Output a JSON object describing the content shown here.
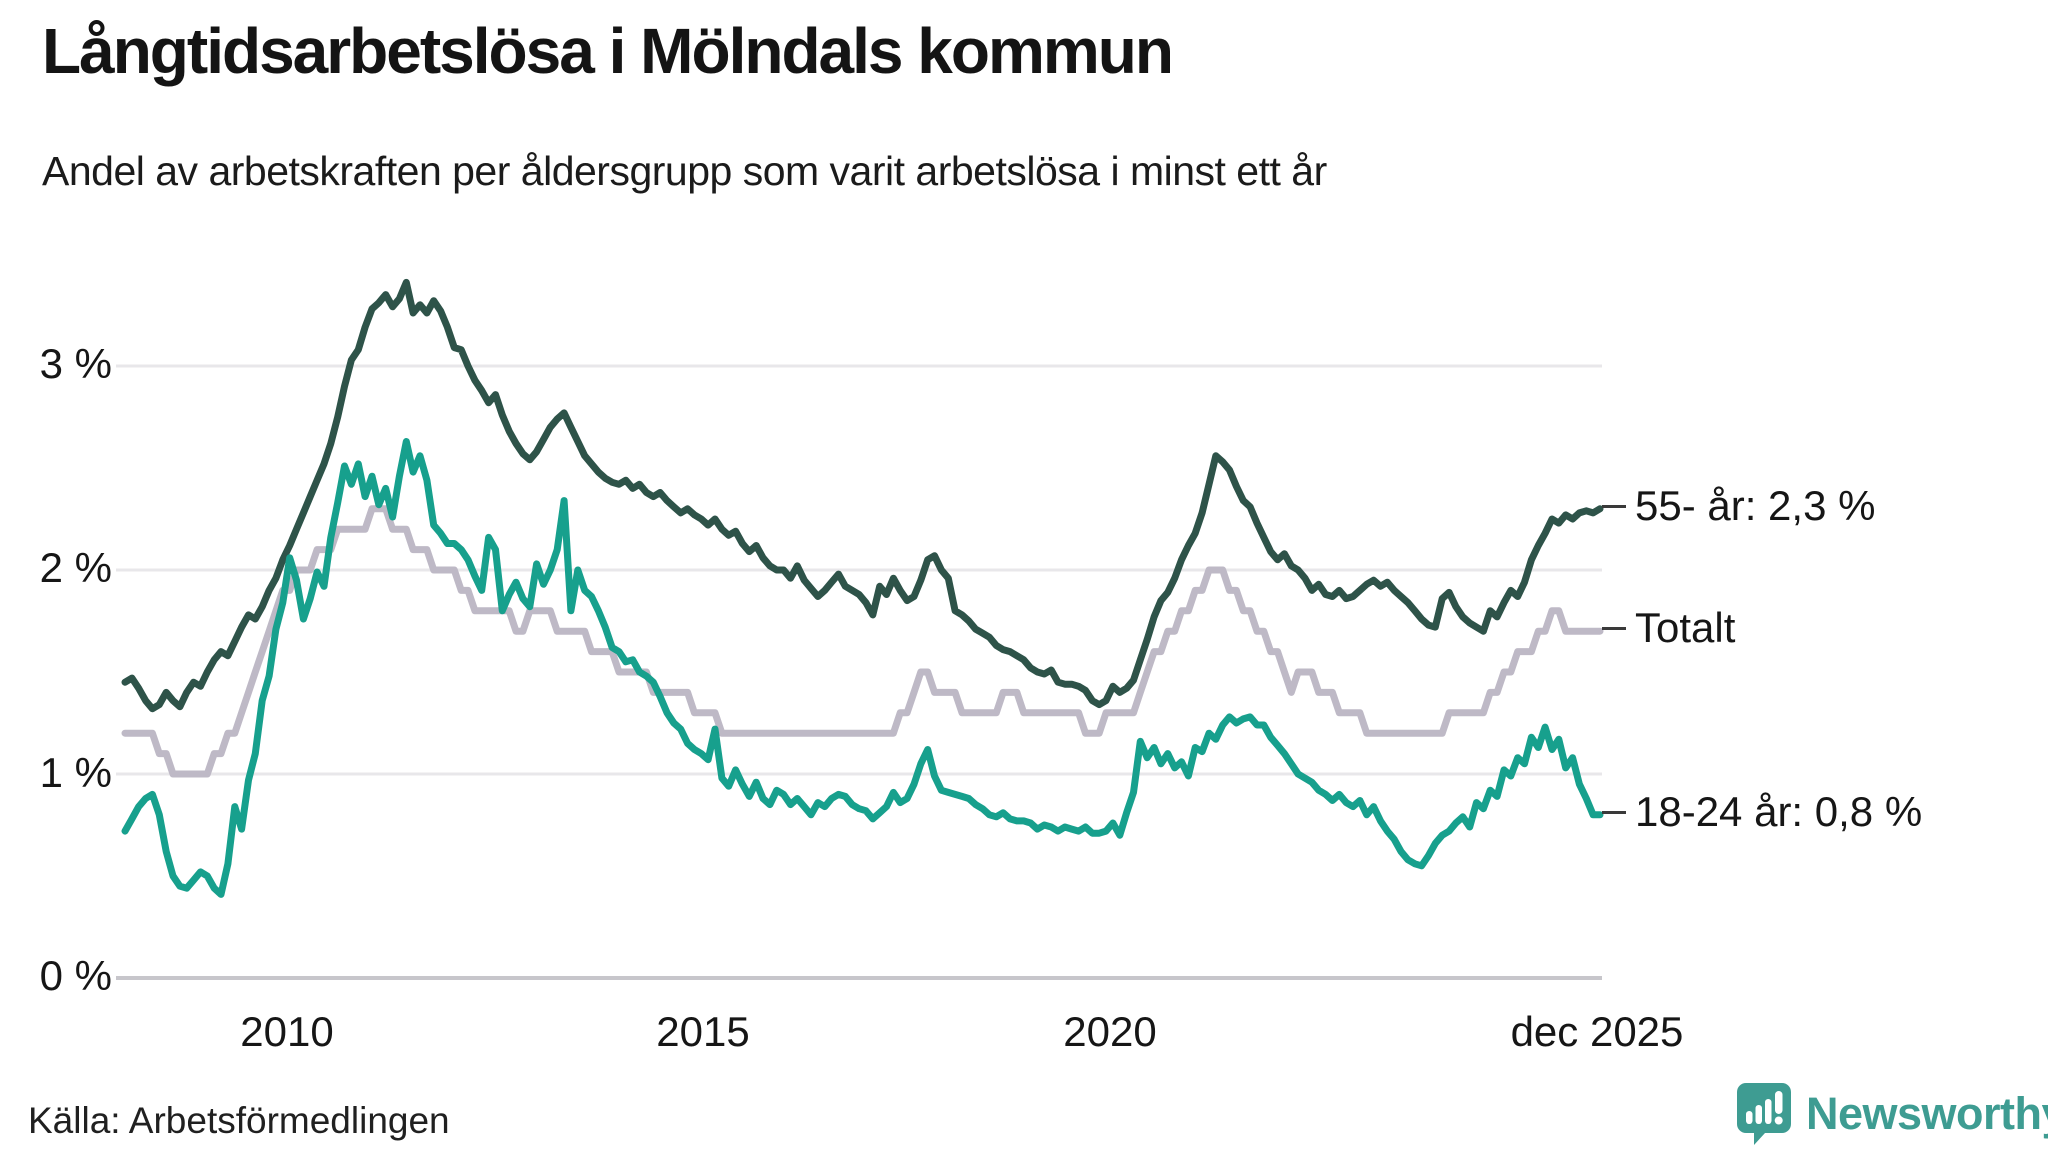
{
  "header": {
    "title": "Långtidsarbetslösa i Mölndals kommun",
    "subtitle": "Andel av arbetskraften per åldersgrupp som varit arbetslösa i minst ett år"
  },
  "footer": {
    "source": "Källa: Arbetsförmedlingen",
    "brand": "Newsworthy",
    "brand_color": "#3e9c92"
  },
  "chart_data": {
    "type": "line",
    "title": "Långtidsarbetslösa i Mölndals kommun",
    "subtitle": "Andel av arbetskraften per åldersgrupp som varit arbetslösa i minst ett år",
    "x_start": "2008-01",
    "x_end": "2025-12",
    "frequency": "monthly",
    "ylim": [
      0,
      3.5
    ],
    "grid": "horizontal",
    "y_ticks": [
      {
        "v": 3,
        "label": "3 %"
      },
      {
        "v": 2,
        "label": "2 %"
      },
      {
        "v": 1,
        "label": "1 %"
      },
      {
        "v": 0,
        "label": "0 %"
      }
    ],
    "x_ticks": [
      {
        "label": "2010"
      },
      {
        "label": "2015"
      },
      {
        "label": "2020"
      },
      {
        "label": "dec 2025"
      }
    ],
    "end_labels": {
      "s55": "55- år: 2,3 %",
      "total": "Totalt",
      "s1824": "18-24 år: 0,8 %"
    },
    "colors": {
      "grid": "#e8e7ea",
      "axis_zero": "#c7c6cb",
      "s55": "#2e5349",
      "total": "#beb9c6",
      "s1824": "#17a08d"
    },
    "series": [
      {
        "key": "total",
        "name": "Totalt",
        "color": "#beb9c6",
        "end_value": 1.7,
        "values": [
          1.2,
          1.2,
          1.2,
          1.2,
          1.2,
          1.1,
          1.1,
          1.0,
          1.0,
          1.0,
          1.0,
          1.0,
          1.0,
          1.1,
          1.1,
          1.2,
          1.2,
          1.3,
          1.4,
          1.5,
          1.6,
          1.7,
          1.8,
          1.9,
          1.9,
          2.0,
          2.0,
          2.0,
          2.1,
          2.1,
          2.1,
          2.2,
          2.2,
          2.2,
          2.2,
          2.2,
          2.3,
          2.3,
          2.3,
          2.2,
          2.2,
          2.2,
          2.1,
          2.1,
          2.1,
          2.0,
          2.0,
          2.0,
          2.0,
          1.9,
          1.9,
          1.8,
          1.8,
          1.8,
          1.8,
          1.8,
          1.8,
          1.7,
          1.7,
          1.8,
          1.8,
          1.8,
          1.8,
          1.7,
          1.7,
          1.7,
          1.7,
          1.7,
          1.6,
          1.6,
          1.6,
          1.6,
          1.5,
          1.5,
          1.5,
          1.5,
          1.5,
          1.4,
          1.4,
          1.4,
          1.4,
          1.4,
          1.4,
          1.3,
          1.3,
          1.3,
          1.3,
          1.2,
          1.2,
          1.2,
          1.2,
          1.2,
          1.2,
          1.2,
          1.2,
          1.2,
          1.2,
          1.2,
          1.2,
          1.2,
          1.2,
          1.2,
          1.2,
          1.2,
          1.2,
          1.2,
          1.2,
          1.2,
          1.2,
          1.2,
          1.2,
          1.2,
          1.2,
          1.3,
          1.3,
          1.4,
          1.5,
          1.5,
          1.4,
          1.4,
          1.4,
          1.4,
          1.3,
          1.3,
          1.3,
          1.3,
          1.3,
          1.3,
          1.4,
          1.4,
          1.4,
          1.3,
          1.3,
          1.3,
          1.3,
          1.3,
          1.3,
          1.3,
          1.3,
          1.3,
          1.2,
          1.2,
          1.2,
          1.3,
          1.3,
          1.3,
          1.3,
          1.3,
          1.4,
          1.5,
          1.6,
          1.6,
          1.7,
          1.7,
          1.8,
          1.8,
          1.9,
          1.9,
          2.0,
          2.0,
          2.0,
          1.9,
          1.9,
          1.8,
          1.8,
          1.7,
          1.7,
          1.6,
          1.6,
          1.5,
          1.4,
          1.5,
          1.5,
          1.5,
          1.4,
          1.4,
          1.4,
          1.3,
          1.3,
          1.3,
          1.3,
          1.2,
          1.2,
          1.2,
          1.2,
          1.2,
          1.2,
          1.2,
          1.2,
          1.2,
          1.2,
          1.2,
          1.2,
          1.3,
          1.3,
          1.3,
          1.3,
          1.3,
          1.3,
          1.4,
          1.4,
          1.5,
          1.5,
          1.6,
          1.6,
          1.6,
          1.7,
          1.7,
          1.8,
          1.8,
          1.7,
          1.7,
          1.7,
          1.7,
          1.7,
          1.7
        ]
      },
      {
        "key": "s55",
        "name": "55- år",
        "color": "#2e5349",
        "end_value": 2.3,
        "values": [
          1.45,
          1.47,
          1.42,
          1.36,
          1.32,
          1.34,
          1.4,
          1.36,
          1.33,
          1.4,
          1.45,
          1.43,
          1.5,
          1.56,
          1.6,
          1.58,
          1.65,
          1.72,
          1.78,
          1.76,
          1.82,
          1.9,
          1.96,
          2.05,
          2.12,
          2.2,
          2.28,
          2.36,
          2.44,
          2.52,
          2.62,
          2.75,
          2.9,
          3.03,
          3.08,
          3.19,
          3.28,
          3.31,
          3.35,
          3.29,
          3.33,
          3.41,
          3.26,
          3.3,
          3.26,
          3.32,
          3.27,
          3.19,
          3.09,
          3.08,
          3.0,
          2.93,
          2.88,
          2.82,
          2.86,
          2.76,
          2.68,
          2.62,
          2.57,
          2.54,
          2.58,
          2.64,
          2.7,
          2.74,
          2.77,
          2.7,
          2.63,
          2.56,
          2.52,
          2.48,
          2.45,
          2.43,
          2.42,
          2.44,
          2.4,
          2.42,
          2.38,
          2.36,
          2.38,
          2.34,
          2.31,
          2.28,
          2.3,
          2.27,
          2.25,
          2.22,
          2.25,
          2.2,
          2.17,
          2.19,
          2.13,
          2.09,
          2.12,
          2.06,
          2.02,
          2.0,
          2.0,
          1.96,
          2.02,
          1.95,
          1.91,
          1.87,
          1.9,
          1.94,
          1.98,
          1.92,
          1.9,
          1.88,
          1.84,
          1.78,
          1.92,
          1.88,
          1.96,
          1.9,
          1.85,
          1.87,
          1.95,
          2.05,
          2.07,
          2.0,
          1.96,
          1.8,
          1.78,
          1.75,
          1.71,
          1.69,
          1.67,
          1.63,
          1.61,
          1.6,
          1.58,
          1.56,
          1.52,
          1.5,
          1.49,
          1.51,
          1.45,
          1.44,
          1.44,
          1.43,
          1.41,
          1.36,
          1.34,
          1.36,
          1.43,
          1.4,
          1.42,
          1.46,
          1.56,
          1.66,
          1.77,
          1.85,
          1.89,
          1.96,
          2.05,
          2.12,
          2.18,
          2.28,
          2.42,
          2.56,
          2.53,
          2.49,
          2.41,
          2.34,
          2.31,
          2.23,
          2.16,
          2.09,
          2.05,
          2.08,
          2.02,
          2.0,
          1.96,
          1.9,
          1.93,
          1.88,
          1.87,
          1.9,
          1.86,
          1.87,
          1.9,
          1.93,
          1.95,
          1.92,
          1.94,
          1.9,
          1.87,
          1.84,
          1.8,
          1.76,
          1.73,
          1.72,
          1.86,
          1.89,
          1.82,
          1.77,
          1.74,
          1.72,
          1.7,
          1.8,
          1.77,
          1.84,
          1.9,
          1.87,
          1.94,
          2.05,
          2.12,
          2.18,
          2.25,
          2.23,
          2.27,
          2.25,
          2.28,
          2.29,
          2.28,
          2.3
        ]
      },
      {
        "key": "s1824",
        "name": "18-24 år",
        "color": "#17a08d",
        "end_value": 0.8,
        "values": [
          0.72,
          0.78,
          0.84,
          0.88,
          0.9,
          0.8,
          0.62,
          0.5,
          0.45,
          0.44,
          0.48,
          0.52,
          0.5,
          0.44,
          0.41,
          0.56,
          0.84,
          0.73,
          0.97,
          1.1,
          1.36,
          1.48,
          1.71,
          1.84,
          2.06,
          1.95,
          1.76,
          1.86,
          1.99,
          1.92,
          2.16,
          2.33,
          2.51,
          2.42,
          2.52,
          2.36,
          2.46,
          2.32,
          2.4,
          2.26,
          2.46,
          2.63,
          2.48,
          2.56,
          2.44,
          2.22,
          2.18,
          2.13,
          2.13,
          2.1,
          2.05,
          1.97,
          1.9,
          2.16,
          2.1,
          1.8,
          1.88,
          1.94,
          1.86,
          1.82,
          2.03,
          1.93,
          2.0,
          2.1,
          2.34,
          1.8,
          2.0,
          1.9,
          1.87,
          1.8,
          1.72,
          1.62,
          1.6,
          1.55,
          1.56,
          1.5,
          1.48,
          1.45,
          1.38,
          1.3,
          1.25,
          1.22,
          1.15,
          1.12,
          1.1,
          1.07,
          1.22,
          0.98,
          0.94,
          1.02,
          0.95,
          0.89,
          0.96,
          0.88,
          0.85,
          0.92,
          0.9,
          0.85,
          0.88,
          0.84,
          0.8,
          0.86,
          0.84,
          0.88,
          0.9,
          0.89,
          0.85,
          0.83,
          0.82,
          0.78,
          0.81,
          0.84,
          0.91,
          0.86,
          0.88,
          0.95,
          1.05,
          1.12,
          0.99,
          0.92,
          0.91,
          0.9,
          0.89,
          0.88,
          0.85,
          0.83,
          0.8,
          0.79,
          0.81,
          0.78,
          0.77,
          0.77,
          0.76,
          0.73,
          0.75,
          0.74,
          0.72,
          0.74,
          0.73,
          0.72,
          0.74,
          0.71,
          0.71,
          0.72,
          0.76,
          0.7,
          0.81,
          0.91,
          1.16,
          1.08,
          1.13,
          1.05,
          1.1,
          1.03,
          1.06,
          0.99,
          1.13,
          1.11,
          1.2,
          1.17,
          1.24,
          1.28,
          1.25,
          1.27,
          1.28,
          1.24,
          1.24,
          1.18,
          1.14,
          1.1,
          1.05,
          1.0,
          0.98,
          0.96,
          0.92,
          0.9,
          0.87,
          0.9,
          0.86,
          0.84,
          0.87,
          0.8,
          0.84,
          0.77,
          0.72,
          0.68,
          0.62,
          0.58,
          0.56,
          0.55,
          0.6,
          0.66,
          0.7,
          0.72,
          0.76,
          0.79,
          0.74,
          0.86,
          0.83,
          0.92,
          0.89,
          1.02,
          0.99,
          1.08,
          1.05,
          1.18,
          1.13,
          1.23,
          1.12,
          1.17,
          1.03,
          1.08,
          0.95,
          0.88,
          0.8,
          0.8
        ]
      }
    ]
  }
}
